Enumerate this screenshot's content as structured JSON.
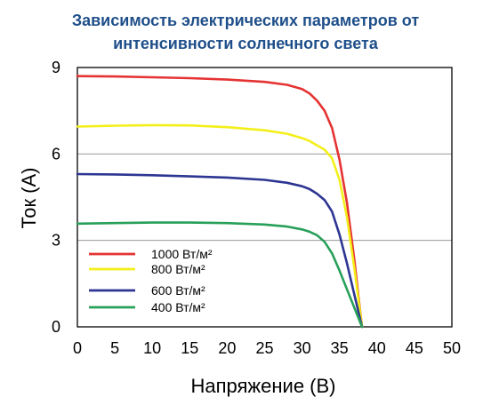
{
  "chart_data": {
    "type": "line",
    "title_lines": [
      "Зависимость электрических параметров от",
      "интенсивности солнечного света"
    ],
    "xlabel": "Напряжение (В)",
    "ylabel": "Ток (А)",
    "xlim": [
      0,
      50
    ],
    "ylim": [
      0,
      9
    ],
    "xticks": [
      "0",
      "5",
      "10",
      "15",
      "20",
      "25",
      "30",
      "35",
      "40",
      "45",
      "50"
    ],
    "yticks": [
      "0",
      "3",
      "6",
      "9"
    ],
    "grid": "horizontal",
    "legend_position": "left-bottom",
    "series": [
      {
        "name": "1000 Вт/м²",
        "color": "#e53333",
        "x": [
          0,
          5,
          10,
          15,
          20,
          25,
          28,
          30,
          31,
          32,
          33,
          34,
          35,
          36,
          37,
          37.5,
          38
        ],
        "y": [
          8.7,
          8.69,
          8.66,
          8.63,
          8.58,
          8.5,
          8.4,
          8.25,
          8.1,
          7.85,
          7.5,
          6.9,
          5.8,
          4.3,
          2.3,
          1.1,
          0
        ]
      },
      {
        "name": "800 Вт/м²",
        "color": "#f3ef1a",
        "x": [
          0,
          5,
          10,
          15,
          20,
          25,
          28,
          30,
          31,
          32,
          33,
          34,
          35,
          36,
          37,
          38
        ],
        "y": [
          6.95,
          6.98,
          7.0,
          6.99,
          6.93,
          6.82,
          6.7,
          6.55,
          6.45,
          6.3,
          6.15,
          5.85,
          5.1,
          3.8,
          2.0,
          0
        ]
      },
      {
        "name": "600 Вт/м²",
        "color": "#2d3592",
        "x": [
          0,
          5,
          10,
          15,
          20,
          25,
          28,
          30,
          31,
          32,
          33,
          34,
          35,
          36,
          37,
          38
        ],
        "y": [
          5.3,
          5.29,
          5.26,
          5.22,
          5.18,
          5.1,
          5.0,
          4.88,
          4.78,
          4.62,
          4.4,
          4.0,
          3.2,
          2.2,
          1.1,
          0
        ]
      },
      {
        "name": "400 Вт/м²",
        "color": "#28a05a",
        "x": [
          0,
          5,
          10,
          15,
          20,
          25,
          28,
          30,
          31,
          32,
          33,
          34,
          35,
          36,
          37,
          38
        ],
        "y": [
          3.58,
          3.6,
          3.62,
          3.62,
          3.6,
          3.55,
          3.48,
          3.38,
          3.3,
          3.18,
          2.95,
          2.55,
          1.95,
          1.3,
          0.65,
          0
        ]
      }
    ]
  }
}
